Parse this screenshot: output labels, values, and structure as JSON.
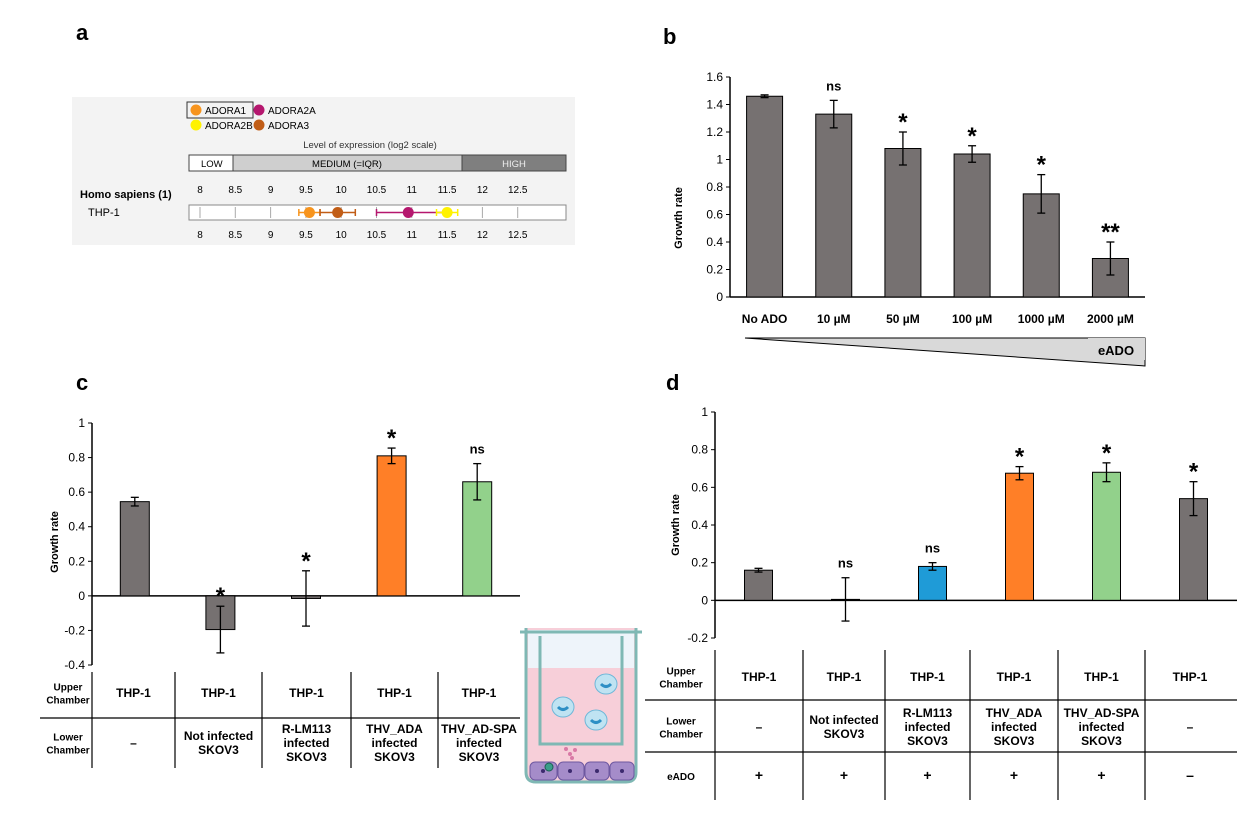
{
  "panel_labels": {
    "a": "a",
    "b": "b",
    "c": "c",
    "d": "d"
  },
  "panel_a": {
    "legend": [
      {
        "name": "ADORA1",
        "color": "#f7941d"
      },
      {
        "name": "ADORA2A",
        "color": "#b5176e"
      },
      {
        "name": "ADORA2B",
        "color": "#fff200"
      },
      {
        "name": "ADORA3",
        "color": "#c15d16"
      }
    ],
    "scale_title": "Level of expression (log2 scale)",
    "bands": {
      "low": "LOW",
      "medium": "MEDIUM (=IQR)",
      "high": "HIGH"
    },
    "ticks": [
      "8",
      "8.5",
      "9",
      "9.5",
      "10",
      "10.5",
      "11",
      "11.5",
      "12",
      "12.5"
    ],
    "species": "Homo sapiens (1)",
    "cell_line": "THP-1",
    "points": [
      {
        "gene": "ADORA1",
        "value": 9.55,
        "low": 9.4,
        "high": 9.7
      },
      {
        "gene": "ADORA3",
        "value": 9.95,
        "low": 9.7,
        "high": 10.2
      },
      {
        "gene": "ADORA2A",
        "value": 10.95,
        "low": 10.5,
        "high": 11.5
      },
      {
        "gene": "ADORA2B",
        "value": 11.5,
        "low": 11.35,
        "high": 11.65
      }
    ]
  },
  "chart_data": [
    {
      "id": "b",
      "type": "bar",
      "ylabel": "Growth rate",
      "ylim": [
        0,
        1.6
      ],
      "yticks": [
        "0",
        "0.2",
        "0.4",
        "0.6",
        "0.8",
        "1",
        "1.2",
        "1.4",
        "1.6"
      ],
      "categories": [
        "No ADO",
        "10 µM",
        "50 µM",
        "100 µM",
        "1000 µM",
        "2000 µM"
      ],
      "values": [
        1.46,
        1.33,
        1.08,
        1.04,
        0.75,
        0.28
      ],
      "errors": [
        0.01,
        0.1,
        0.12,
        0.06,
        0.14,
        0.12
      ],
      "annotations": [
        "",
        "ns",
        "*",
        "*",
        "*",
        "**"
      ],
      "colors": [
        "#767171",
        "#767171",
        "#767171",
        "#767171",
        "#767171",
        "#767171"
      ],
      "gradient_label": "eADO"
    },
    {
      "id": "c",
      "type": "bar",
      "ylabel": "Growth rate",
      "ylim": [
        -0.4,
        1
      ],
      "yticks": [
        "-0.4",
        "-0.2",
        "0",
        "0.2",
        "0.4",
        "0.6",
        "0.8",
        "1"
      ],
      "values": [
        0.545,
        -0.195,
        -0.015,
        0.81,
        0.66
      ],
      "errors": [
        0.025,
        0.135,
        0.16,
        0.045,
        0.105
      ],
      "annotations": [
        "",
        "*",
        "*",
        "*",
        "ns"
      ],
      "colors": [
        "#767171",
        "#767171",
        "#767171",
        "#ff7f27",
        "#92d18b"
      ],
      "table": {
        "row_labels": [
          "Upper Chamber",
          "Lower Chamber"
        ],
        "upper": [
          "THP-1",
          "THP-1",
          "THP-1",
          "THP-1",
          "THP-1"
        ],
        "lower": [
          "–",
          "Not infected SKOV3",
          "R-LM113 infected SKOV3",
          "THV_ADA infected SKOV3",
          "THV_AD-SPA infected SKOV3"
        ]
      }
    },
    {
      "id": "d",
      "type": "bar",
      "ylabel": "Growth rate",
      "ylim": [
        -0.2,
        1
      ],
      "yticks": [
        "-0.2",
        "0",
        "0.2",
        "0.4",
        "0.6",
        "0.8",
        "1"
      ],
      "values": [
        0.16,
        0.005,
        0.18,
        0.675,
        0.68,
        0.54
      ],
      "errors": [
        0.01,
        0.115,
        0.02,
        0.035,
        0.05,
        0.09
      ],
      "annotations": [
        "",
        "ns",
        "ns",
        "*",
        "*",
        "*"
      ],
      "colors": [
        "#767171",
        "#767171",
        "#1f9bd7",
        "#ff7f27",
        "#92d18b",
        "#767171"
      ],
      "table": {
        "row_labels": [
          "Upper Chamber",
          "Lower Chamber",
          "eADO"
        ],
        "upper": [
          "THP-1",
          "THP-1",
          "THP-1",
          "THP-1",
          "THP-1",
          "THP-1"
        ],
        "lower": [
          "–",
          "Not infected SKOV3",
          "R-LM113 infected SKOV3",
          "THV_ADA infected SKOV3",
          "THV_AD-SPA infected SKOV3",
          "–"
        ],
        "eado": [
          "+",
          "+",
          "+",
          "+",
          "+",
          "–"
        ]
      }
    }
  ]
}
